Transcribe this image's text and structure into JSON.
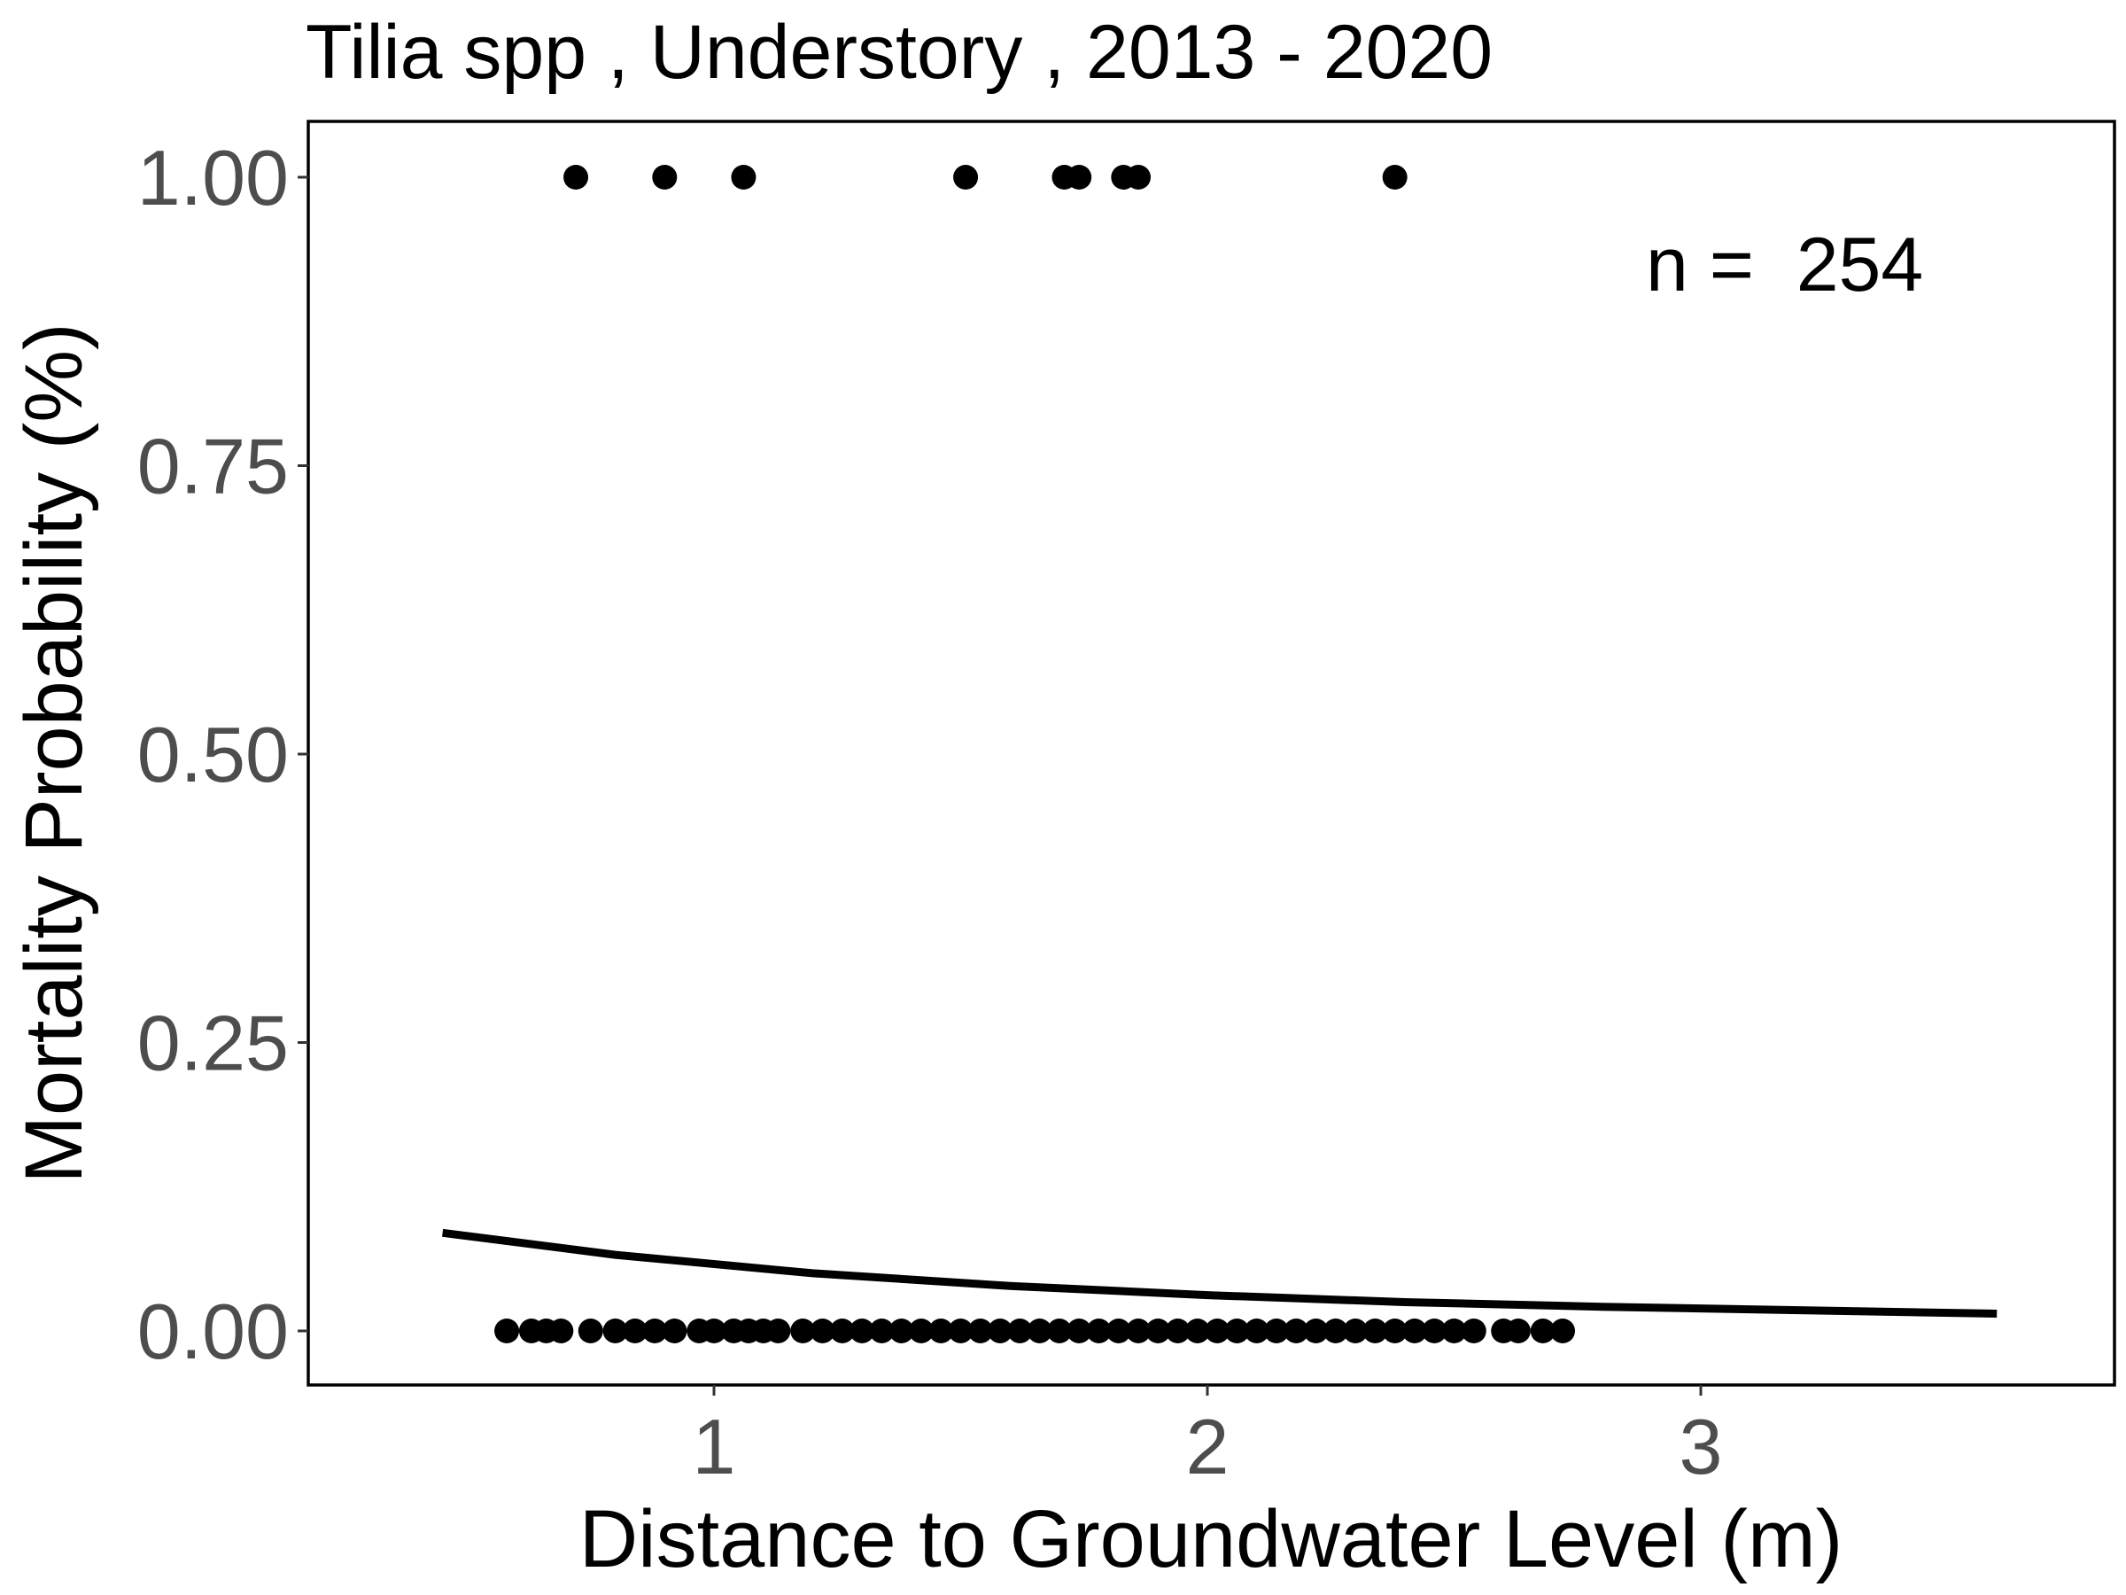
{
  "chart_data": {
    "type": "scatter",
    "title": "Tilia spp , Understory , 2013 - 2020",
    "xlabel": "Distance to Groundwater Level (m)",
    "ylabel": "Mortality Probability (%)",
    "annotation": "n =  254",
    "x_ticks": [
      1,
      2,
      3
    ],
    "x_tick_labels": [
      "1",
      "2",
      "3"
    ],
    "y_ticks": [
      0,
      0.25,
      0.5,
      0.75,
      1.0
    ],
    "y_tick_labels": [
      "0.00",
      "0.25",
      "0.50",
      "0.75",
      "1.00"
    ],
    "xlim": [
      0.3,
      3.95
    ],
    "ylim": [
      -0.05,
      1.05
    ],
    "grid": false,
    "series": [
      {
        "type": "scatter",
        "points": [
          {
            "x": 0.72,
            "y": 1
          },
          {
            "x": 0.9,
            "y": 1
          },
          {
            "x": 1.06,
            "y": 1
          },
          {
            "x": 1.51,
            "y": 1
          },
          {
            "x": 1.71,
            "y": 1
          },
          {
            "x": 1.74,
            "y": 1
          },
          {
            "x": 1.83,
            "y": 1
          },
          {
            "x": 1.86,
            "y": 1
          },
          {
            "x": 2.38,
            "y": 1
          },
          {
            "x": 0.58,
            "y": 0
          },
          {
            "x": 0.63,
            "y": 0
          },
          {
            "x": 0.66,
            "y": 0
          },
          {
            "x": 0.69,
            "y": 0
          },
          {
            "x": 0.75,
            "y": 0
          },
          {
            "x": 0.8,
            "y": 0
          },
          {
            "x": 0.84,
            "y": 0
          },
          {
            "x": 0.88,
            "y": 0
          },
          {
            "x": 0.92,
            "y": 0
          },
          {
            "x": 0.97,
            "y": 0
          },
          {
            "x": 1.0,
            "y": 0
          },
          {
            "x": 1.04,
            "y": 0
          },
          {
            "x": 1.07,
            "y": 0
          },
          {
            "x": 1.1,
            "y": 0
          },
          {
            "x": 1.13,
            "y": 0
          },
          {
            "x": 1.18,
            "y": 0
          },
          {
            "x": 1.22,
            "y": 0
          },
          {
            "x": 1.26,
            "y": 0
          },
          {
            "x": 1.3,
            "y": 0
          },
          {
            "x": 1.34,
            "y": 0
          },
          {
            "x": 1.38,
            "y": 0
          },
          {
            "x": 1.42,
            "y": 0
          },
          {
            "x": 1.46,
            "y": 0
          },
          {
            "x": 1.5,
            "y": 0
          },
          {
            "x": 1.54,
            "y": 0
          },
          {
            "x": 1.58,
            "y": 0
          },
          {
            "x": 1.62,
            "y": 0
          },
          {
            "x": 1.66,
            "y": 0
          },
          {
            "x": 1.7,
            "y": 0
          },
          {
            "x": 1.74,
            "y": 0
          },
          {
            "x": 1.78,
            "y": 0
          },
          {
            "x": 1.82,
            "y": 0
          },
          {
            "x": 1.86,
            "y": 0
          },
          {
            "x": 1.9,
            "y": 0
          },
          {
            "x": 1.94,
            "y": 0
          },
          {
            "x": 1.98,
            "y": 0
          },
          {
            "x": 2.02,
            "y": 0
          },
          {
            "x": 2.06,
            "y": 0
          },
          {
            "x": 2.1,
            "y": 0
          },
          {
            "x": 2.14,
            "y": 0
          },
          {
            "x": 2.18,
            "y": 0
          },
          {
            "x": 2.22,
            "y": 0
          },
          {
            "x": 2.26,
            "y": 0
          },
          {
            "x": 2.3,
            "y": 0
          },
          {
            "x": 2.34,
            "y": 0
          },
          {
            "x": 2.38,
            "y": 0
          },
          {
            "x": 2.42,
            "y": 0
          },
          {
            "x": 2.46,
            "y": 0
          },
          {
            "x": 2.5,
            "y": 0
          },
          {
            "x": 2.54,
            "y": 0
          },
          {
            "x": 2.6,
            "y": 0
          },
          {
            "x": 2.63,
            "y": 0
          },
          {
            "x": 2.68,
            "y": 0
          },
          {
            "x": 2.72,
            "y": 0
          }
        ],
        "color": "#000000"
      },
      {
        "type": "line",
        "points": [
          {
            "x": 0.45,
            "y": 0.085
          },
          {
            "x": 0.8,
            "y": 0.066
          },
          {
            "x": 1.2,
            "y": 0.05
          },
          {
            "x": 1.6,
            "y": 0.039
          },
          {
            "x": 2.0,
            "y": 0.031
          },
          {
            "x": 2.4,
            "y": 0.025
          },
          {
            "x": 2.8,
            "y": 0.021
          },
          {
            "x": 3.2,
            "y": 0.018
          },
          {
            "x": 3.6,
            "y": 0.015
          }
        ],
        "color": "#000000"
      }
    ]
  }
}
